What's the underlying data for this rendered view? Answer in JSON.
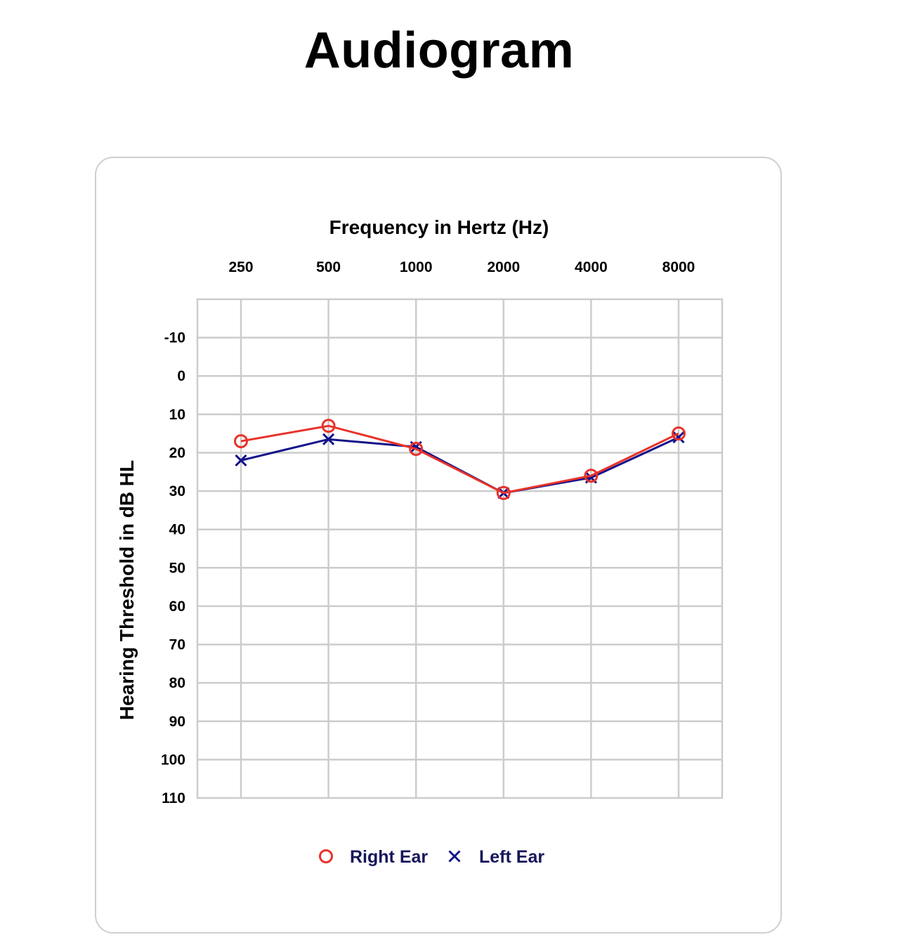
{
  "page": {
    "title": "Audiogram"
  },
  "chart_data": {
    "type": "line",
    "xlabel": "Frequency in Hertz (Hz)",
    "ylabel": "Hearing Threshold in dB HL",
    "categories": [
      "250",
      "500",
      "1000",
      "2000",
      "4000",
      "8000"
    ],
    "y_ticks": [
      "-10",
      "0",
      "10",
      "20",
      "30",
      "40",
      "50",
      "60",
      "70",
      "80",
      "90",
      "100",
      "110"
    ],
    "ylim": [
      110,
      -20
    ],
    "y_inverted": true,
    "x_axis_position": "top",
    "grid": true,
    "legend_position": "bottom-center",
    "series": [
      {
        "name": "Right Ear",
        "marker": "circle",
        "color": "#e8322a",
        "values": [
          17,
          13,
          19,
          30.5,
          26,
          15
        ]
      },
      {
        "name": "Left Ear",
        "marker": "x",
        "color": "#13138a",
        "values": [
          22,
          16.5,
          18.5,
          30.5,
          26.5,
          16
        ]
      }
    ]
  }
}
